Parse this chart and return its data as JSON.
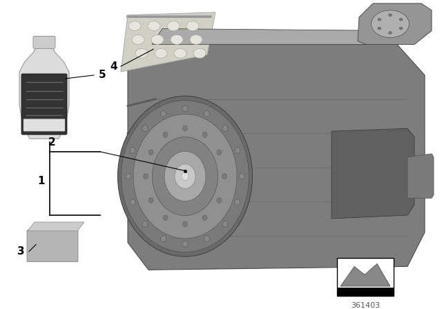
{
  "background_color": "#ffffff",
  "diagram_number": "361403",
  "gearbox_color": "#8a8a8a",
  "gearbox_dark": "#5a5a5a",
  "gearbox_light": "#aaaaaa",
  "gearbox_mid": "#7a7a7a",
  "tc_face_color": "#909090",
  "tc_ring_color": "#7e7e7e",
  "tc_hub_color": "#b0b0b0",
  "tc_center_color": "#d0d0d0",
  "bolt_color": "#888888",
  "bottle_body_color": "#dcdcdc",
  "bottle_cap_color": "#d0d0d0",
  "bottle_label_color": "#3a3a3a",
  "blister_color": "#d8d8cc",
  "blister_bubble_color": "#e8e8e0",
  "box3_side_color": "#b0b0b0",
  "box3_top_color": "#c8c8c8",
  "label_font_size": 11,
  "diagram_font_size": 8
}
